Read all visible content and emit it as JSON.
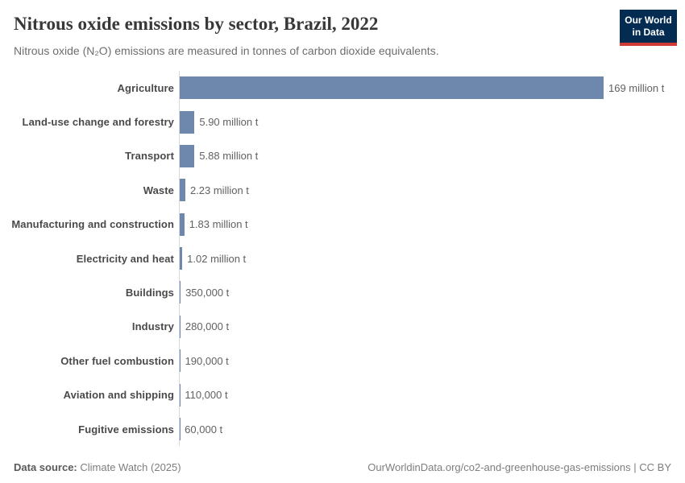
{
  "header": {
    "title": "Nitrous oxide emissions by sector, Brazil, 2022",
    "subtitle": "Nitrous oxide (N₂O) emissions are measured in tonnes of carbon dioxide equivalents."
  },
  "logo": {
    "line1": "Our World",
    "line2": "in Data",
    "bg_color": "#042c53",
    "accent_color": "#cf3b32"
  },
  "chart_data": {
    "type": "bar",
    "orientation": "horizontal",
    "title": "Nitrous oxide emissions by sector, Brazil, 2022",
    "xlabel": "",
    "ylabel": "",
    "xlim": [
      0,
      169000000
    ],
    "grid": false,
    "legend": false,
    "bar_color": "#6e87ad",
    "axis_line_color": "#d9d9d9",
    "categories": [
      "Agriculture",
      "Land-use change and forestry",
      "Transport",
      "Waste",
      "Manufacturing and construction",
      "Electricity and heat",
      "Buildings",
      "Industry",
      "Other fuel combustion",
      "Aviation and shipping",
      "Fugitive emissions"
    ],
    "values": [
      169000000,
      5900000,
      5880000,
      2230000,
      1830000,
      1020000,
      350000,
      280000,
      190000,
      110000,
      60000
    ],
    "value_labels": [
      "169 million t",
      "5.90 million t",
      "5.88 million t",
      "2.23 million t",
      "1.83 million t",
      "1.02 million t",
      "350,000 t",
      "280,000 t",
      "190,000 t",
      "110,000 t",
      "60,000 t"
    ]
  },
  "footer": {
    "data_source_label": "Data source:",
    "data_source_value": " Climate Watch (2025)",
    "citation_url": "OurWorldinData.org/co2-and-greenhouse-gas-emissions",
    "license": " | CC BY"
  }
}
